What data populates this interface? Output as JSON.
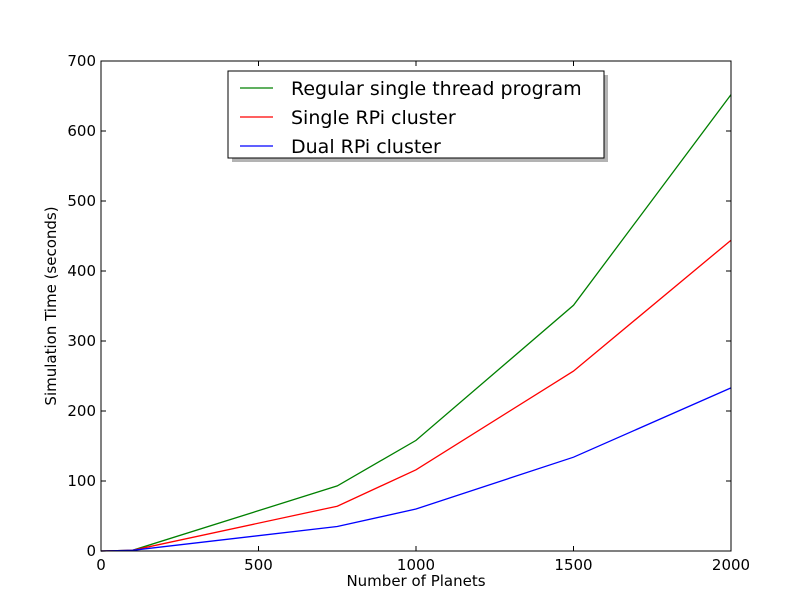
{
  "chart_data": {
    "type": "line",
    "title": "",
    "xlabel": "Number of Planets",
    "ylabel": "Simulation Time (seconds)",
    "xlim": [
      0,
      2000
    ],
    "ylim": [
      0,
      700
    ],
    "xticks": [
      0,
      500,
      1000,
      1500,
      2000
    ],
    "yticks": [
      0,
      100,
      200,
      300,
      400,
      500,
      600,
      700
    ],
    "grid": false,
    "legend_position": "top-center",
    "series": [
      {
        "name": "Regular single thread program",
        "color": "#008000",
        "x": [
          0,
          100,
          750,
          1000,
          1500,
          2000
        ],
        "y": [
          0,
          1,
          93,
          158,
          351,
          652
        ]
      },
      {
        "name": "Single RPi cluster",
        "color": "#ff0000",
        "x": [
          0,
          100,
          750,
          1000,
          1500,
          2000
        ],
        "y": [
          0,
          1,
          64,
          116,
          257,
          444
        ]
      },
      {
        "name": "Dual RPi cluster",
        "color": "#0000ff",
        "x": [
          0,
          100,
          750,
          1000,
          1500,
          2000
        ],
        "y": [
          0,
          1,
          35,
          60,
          134,
          233
        ]
      }
    ]
  }
}
